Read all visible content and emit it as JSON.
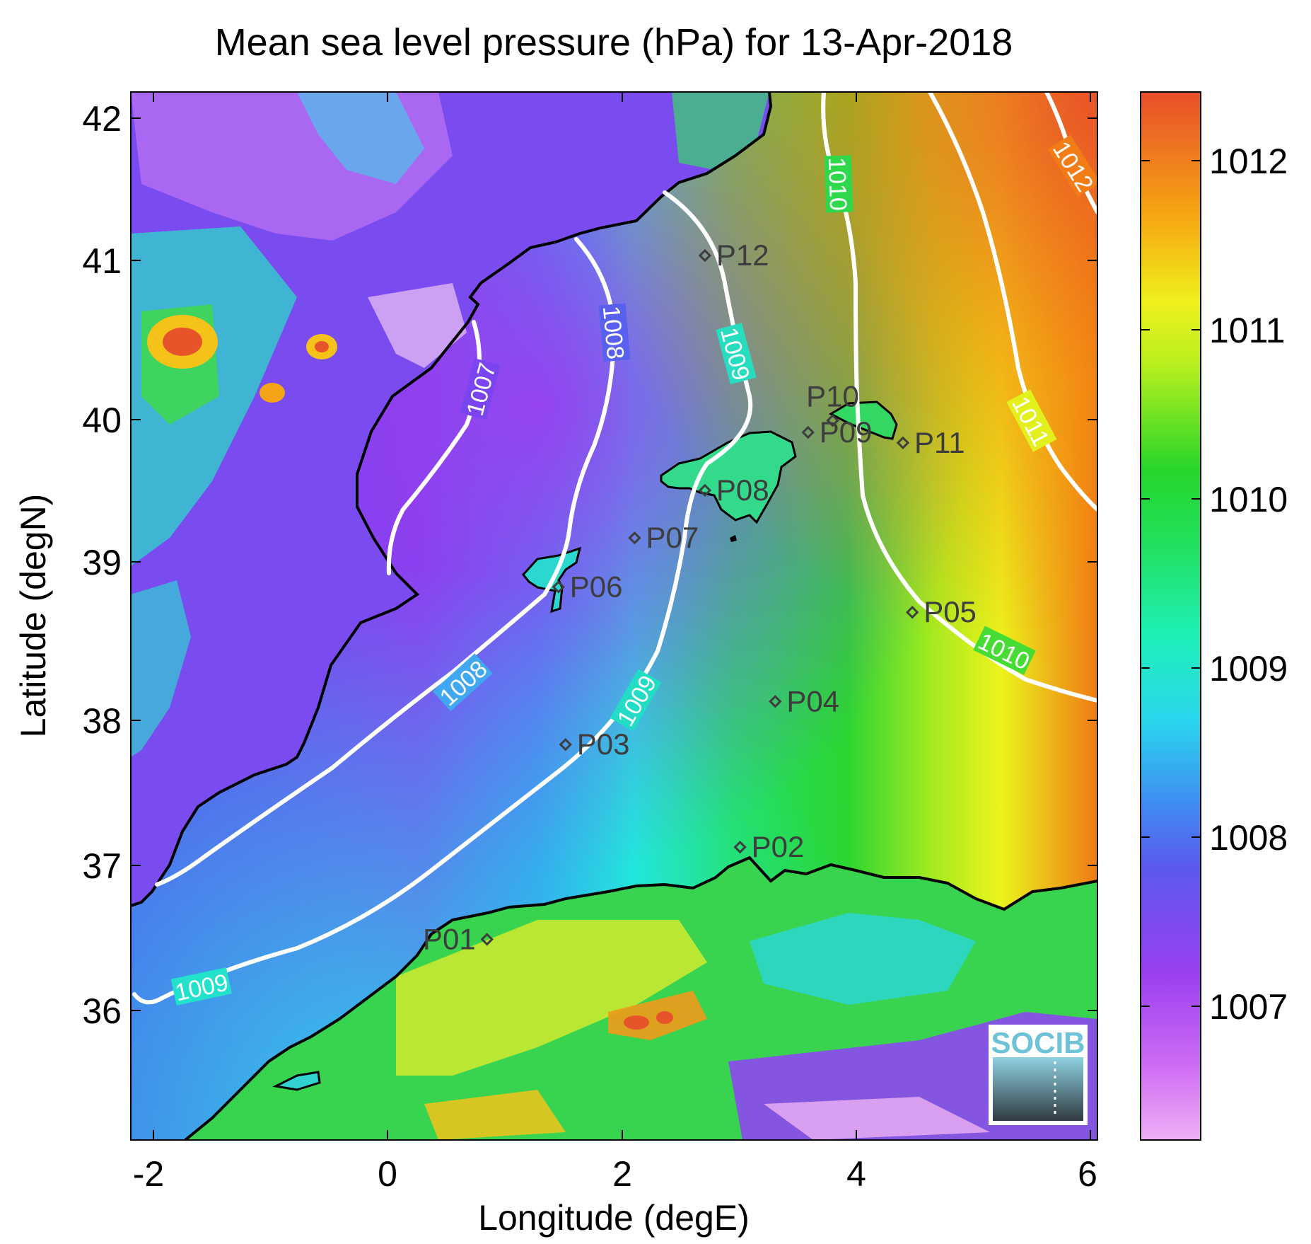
{
  "title": "Mean sea level pressure (hPa) for 13-Apr-2018",
  "xlabel": "Longitude (degE)",
  "ylabel": "Latitude (degN)",
  "xticks": [
    "-2",
    "0",
    "2",
    "4",
    "6"
  ],
  "yticks": [
    "36",
    "37",
    "38",
    "39",
    "40",
    "41",
    "42"
  ],
  "colorbar_ticks": [
    "1007",
    "1008",
    "1009",
    "1010",
    "1011",
    "1012"
  ],
  "contour_labels": [
    {
      "text": "1007"
    },
    {
      "text": "1008"
    },
    {
      "text": "1008"
    },
    {
      "text": "1009"
    },
    {
      "text": "1009"
    },
    {
      "text": "1009"
    },
    {
      "text": "1010"
    },
    {
      "text": "1010"
    },
    {
      "text": "1011"
    },
    {
      "text": "1012"
    }
  ],
  "logo_text": "SOCIB",
  "colors": {
    "low": "#e9a6f3",
    "purple": "#9a3ff0",
    "blue": "#3f8cf2",
    "cyan": "#22e6e6",
    "green": "#27dc36",
    "yellow": "#e6f51c",
    "orange": "#f58a12",
    "high": "#e8512a",
    "contour": "#ffffff",
    "coast": "#000000",
    "point": "#3d3d3d"
  },
  "chart_data": {
    "type": "heatmap",
    "title": "Mean sea level pressure (hPa) for 13-Apr-2018",
    "xlabel": "Longitude (degE)",
    "ylabel": "Latitude (degN)",
    "xlim": [
      -2.2,
      6.05
    ],
    "ylim": [
      35.15,
      42.2
    ],
    "colorbar": {
      "label": "",
      "range": [
        1006.2,
        1012.4
      ],
      "ticks": [
        1007,
        1008,
        1009,
        1010,
        1011,
        1012
      ]
    },
    "contour_levels": [
      1007,
      1008,
      1009,
      1010,
      1011,
      1012
    ],
    "points": [
      {
        "name": "P01",
        "lon": 0.84,
        "lat": 36.5
      },
      {
        "name": "P02",
        "lon": 3.0,
        "lat": 37.12
      },
      {
        "name": "P03",
        "lon": 1.51,
        "lat": 37.81
      },
      {
        "name": "P04",
        "lon": 3.3,
        "lat": 38.1
      },
      {
        "name": "P05",
        "lon": 4.47,
        "lat": 38.7
      },
      {
        "name": "P06",
        "lon": 1.45,
        "lat": 38.87
      },
      {
        "name": "P07",
        "lon": 2.1,
        "lat": 39.2
      },
      {
        "name": "P08",
        "lon": 2.7,
        "lat": 39.52
      },
      {
        "name": "P09",
        "lon": 3.58,
        "lat": 39.91
      },
      {
        "name": "P10",
        "lon": 3.79,
        "lat": 39.99
      },
      {
        "name": "P11",
        "lon": 4.39,
        "lat": 39.84
      },
      {
        "name": "P12",
        "lon": 2.7,
        "lat": 41.1
      }
    ]
  }
}
